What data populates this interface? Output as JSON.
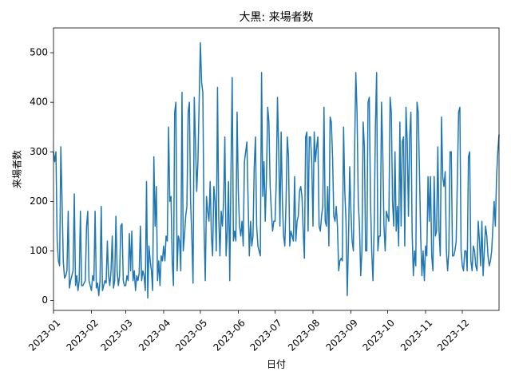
{
  "chart_data": {
    "type": "line",
    "title": "大黒: 来場者数",
    "x_label": "日付",
    "y_label": "来場者数",
    "color": "#1f77b4",
    "values": [
      300,
      280,
      300,
      120,
      80,
      70,
      310,
      200,
      80,
      45,
      50,
      60,
      180,
      25,
      40,
      50,
      60,
      215,
      30,
      50,
      20,
      40,
      180,
      30,
      30,
      35,
      40,
      150,
      180,
      40,
      30,
      20,
      50,
      40,
      180,
      25,
      35,
      10,
      40,
      190,
      20,
      30,
      40,
      35,
      120,
      50,
      30,
      60,
      130,
      25,
      40,
      170,
      60,
      30,
      50,
      150,
      155,
      40,
      30,
      30,
      50,
      40,
      135,
      60,
      140,
      40,
      60,
      20,
      50,
      40,
      55,
      150,
      40,
      60,
      50,
      20,
      240,
      5,
      110,
      80,
      60,
      20,
      290,
      150,
      230,
      40,
      80,
      30,
      90,
      80,
      110,
      80,
      130,
      120,
      350,
      200,
      210,
      80,
      30,
      380,
      400,
      60,
      130,
      120,
      60,
      420,
      100,
      130,
      170,
      190,
      380,
      400,
      200,
      130,
      35,
      410,
      320,
      220,
      280,
      400,
      520,
      440,
      420,
      150,
      40,
      210,
      180,
      160,
      240,
      130,
      90,
      230,
      200,
      100,
      430,
      170,
      90,
      180,
      150,
      200,
      330,
      90,
      140,
      240,
      40,
      260,
      450,
      120,
      140,
      120,
      380,
      220,
      150,
      130,
      160,
      110,
      280,
      300,
      320,
      200,
      90,
      160,
      110,
      130,
      270,
      330,
      150,
      110,
      100,
      90,
      460,
      210,
      280,
      160,
      250,
      390,
      360,
      230,
      180,
      140,
      160,
      160,
      240,
      410,
      300,
      150,
      340,
      200,
      130,
      110,
      200,
      330,
      290,
      110,
      140,
      130,
      120,
      250,
      120,
      160,
      170,
      220,
      230,
      210,
      140,
      85,
      330,
      340,
      140,
      330,
      330,
      280,
      150,
      340,
      280,
      310,
      330,
      150,
      140,
      170,
      190,
      390,
      160,
      150,
      230,
      110,
      370,
      360,
      290,
      170,
      160,
      190,
      150,
      60,
      80,
      85,
      80,
      350,
      220,
      160,
      10,
      120,
      270,
      180,
      120,
      100,
      300,
      460,
      380,
      200,
      150,
      50,
      100,
      360,
      310,
      100,
      100,
      400,
      410,
      200,
      100,
      40,
      150,
      350,
      460,
      100,
      130,
      130,
      400,
      300,
      150,
      100,
      180,
      170,
      160,
      410,
      380,
      200,
      150,
      300,
      140,
      190,
      110,
      360,
      150,
      320,
      330,
      110,
      390,
      320,
      170,
      330,
      380,
      140,
      50,
      100,
      70,
      400,
      380,
      260,
      130,
      50,
      100,
      40,
      110,
      90,
      250,
      160,
      250,
      90,
      60,
      250,
      130,
      140,
      310,
      140,
      90,
      370,
      250,
      230,
      260,
      100,
      60,
      100,
      300,
      300,
      90,
      90,
      100,
      120,
      250,
      380,
      390,
      100,
      70,
      60,
      100,
      100,
      60,
      290,
      300,
      80,
      60,
      110,
      100,
      70,
      60,
      160,
      120,
      70,
      160,
      50,
      100,
      150,
      130,
      90,
      70,
      80,
      100,
      150,
      200,
      150,
      250,
      300,
      335
    ],
    "xlim": [
      0,
      364
    ],
    "xticks": [
      {
        "value": 0,
        "label": "2023-01"
      },
      {
        "value": 31,
        "label": "2023-02"
      },
      {
        "value": 59,
        "label": "2023-03"
      },
      {
        "value": 90,
        "label": "2023-04"
      },
      {
        "value": 120,
        "label": "2023-05"
      },
      {
        "value": 151,
        "label": "2023-06"
      },
      {
        "value": 181,
        "label": "2023-07"
      },
      {
        "value": 212,
        "label": "2023-08"
      },
      {
        "value": 243,
        "label": "2023-09"
      },
      {
        "value": 273,
        "label": "2023-10"
      },
      {
        "value": 304,
        "label": "2023-11"
      },
      {
        "value": 334,
        "label": "2023-12"
      }
    ],
    "ylim": [
      -20,
      550
    ],
    "yticks": [
      0,
      100,
      200,
      300,
      400,
      500
    ]
  }
}
